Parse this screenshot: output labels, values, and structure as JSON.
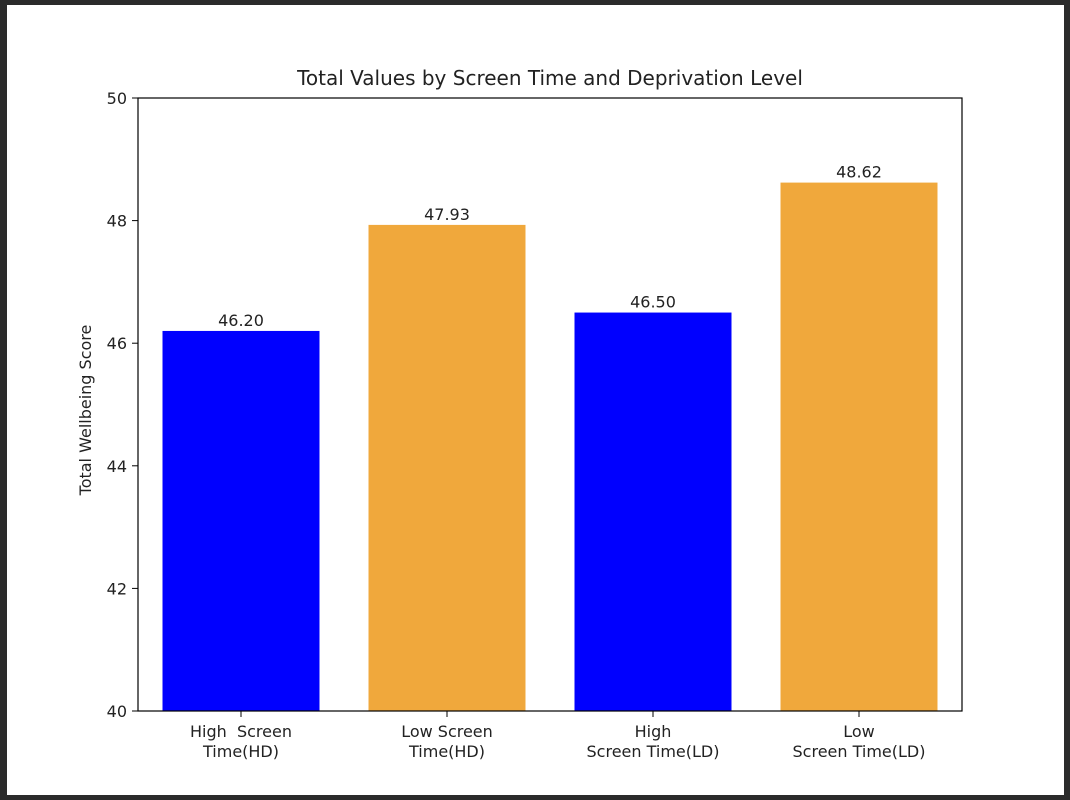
{
  "chart_data": {
    "type": "bar",
    "title": "Total Values by Screen Time and Deprivation Level",
    "xlabel": "",
    "ylabel": "Total Wellbeing Score",
    "categories": [
      [
        "High  Screen",
        "Time(HD)"
      ],
      [
        "Low Screen",
        "Time(HD)"
      ],
      [
        "High",
        "Screen Time(LD)"
      ],
      [
        "Low",
        "Screen Time(LD)"
      ]
    ],
    "values": [
      46.2,
      47.93,
      46.5,
      48.62
    ],
    "value_labels": [
      "46.20",
      "47.93",
      "46.50",
      "48.62"
    ],
    "colors": [
      "#0000ff",
      "#f0a83c",
      "#0000ff",
      "#f0a83c"
    ],
    "ylim": [
      40,
      50
    ],
    "yticks": [
      40,
      42,
      44,
      46,
      48,
      50
    ],
    "grid": false,
    "legend": "none"
  }
}
